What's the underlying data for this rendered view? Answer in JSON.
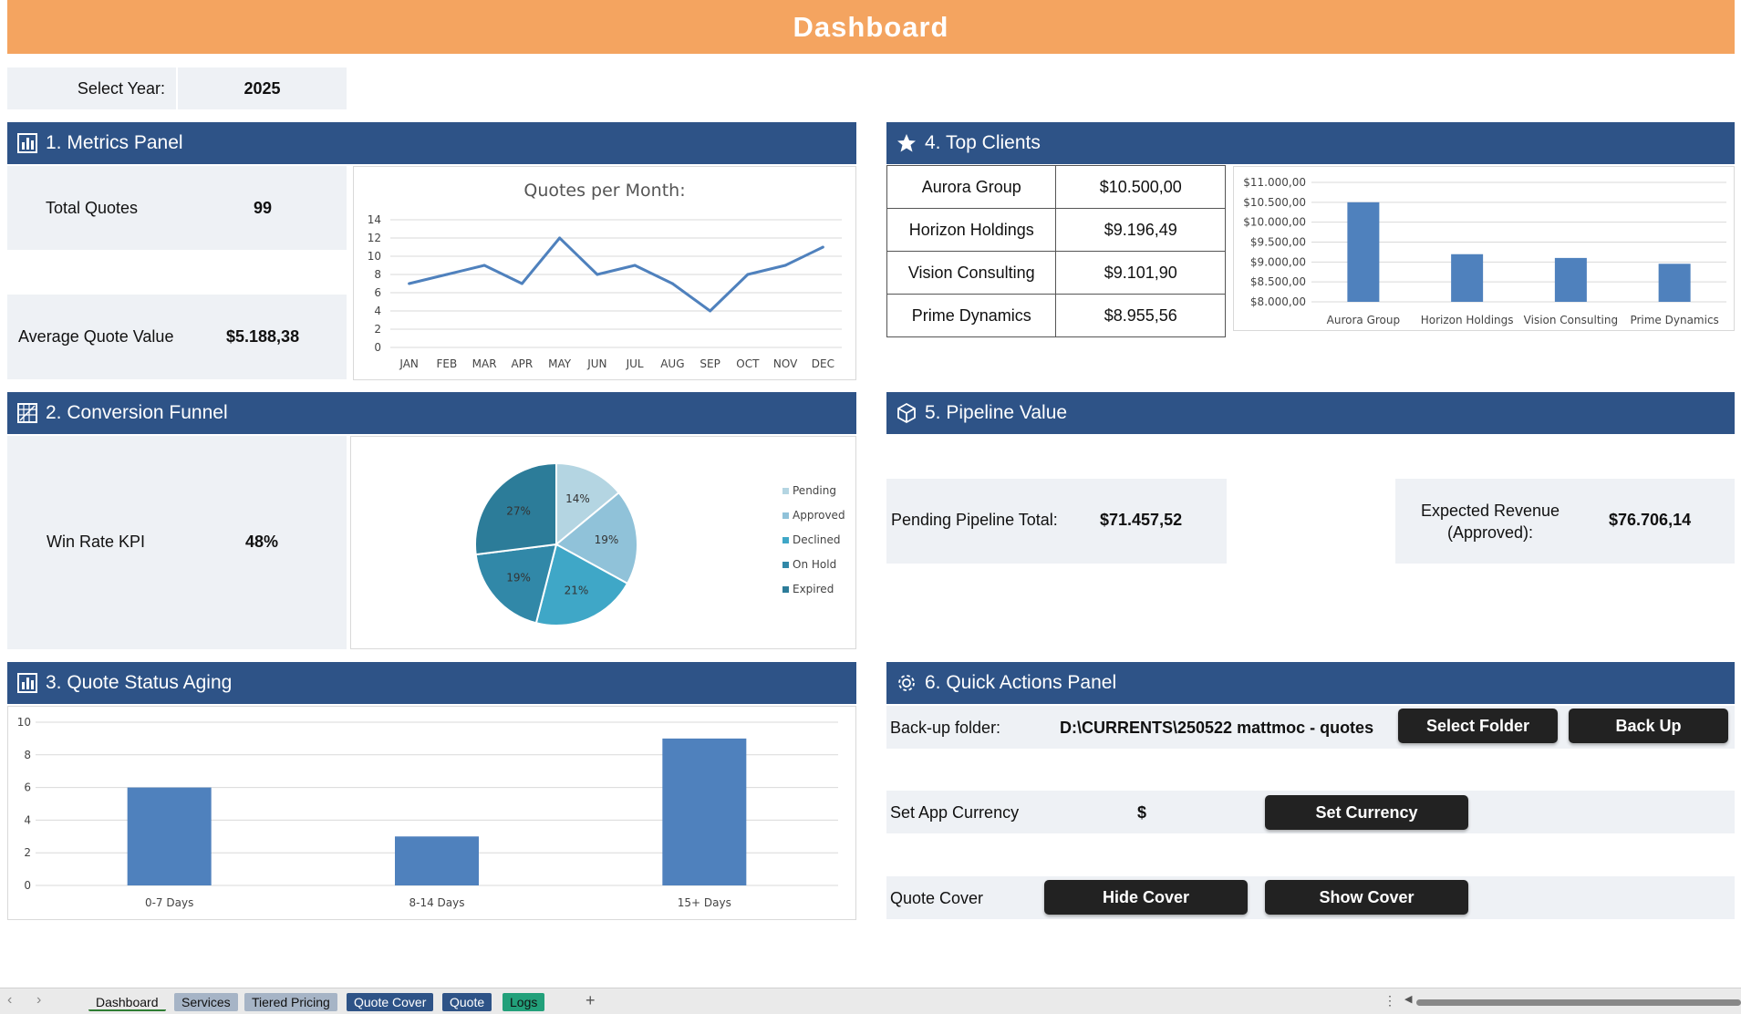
{
  "title": "Dashboard",
  "year_selector": {
    "label": "Select Year:",
    "value": "2025"
  },
  "metrics": {
    "header": "1. Metrics Panel",
    "total_quotes_label": "Total Quotes",
    "total_quotes_value": "99",
    "avg_label": "Average Quote Value",
    "avg_value": "$5.188,38",
    "chart_title": "Quotes per Month:"
  },
  "funnel": {
    "header": "2. Conversion Funnel",
    "kpi_label": "Win Rate KPI",
    "kpi_value": "48%"
  },
  "aging": {
    "header": "3. Quote Status Aging"
  },
  "clients": {
    "header": "4. Top Clients",
    "rows": [
      {
        "name": "Aurora Group",
        "value": "$10.500,00"
      },
      {
        "name": "Horizon Holdings",
        "value": "$9.196,49"
      },
      {
        "name": "Vision Consulting",
        "value": "$9.101,90"
      },
      {
        "name": "Prime Dynamics",
        "value": "$8.955,56"
      }
    ]
  },
  "pipeline": {
    "header": "5. Pipeline Value",
    "pending_label": "Pending Pipeline Total:",
    "pending_value": "$71.457,52",
    "expected_label_1": "Expected Revenue",
    "expected_label_2": "(Approved):",
    "expected_value": "$76.706,14"
  },
  "actions": {
    "header": "6. Quick Actions Panel",
    "backup_label": "Back-up folder:",
    "backup_path": "D:\\CURRENTS\\250522 mattmoc - quotes",
    "select_folder": "Select Folder",
    "back_up": "Back Up",
    "currency_label": "Set App Currency",
    "currency_value": "$",
    "set_currency": "Set Currency",
    "cover_label": "Quote Cover",
    "hide_cover": "Hide Cover",
    "show_cover": "Show Cover"
  },
  "sheet_tabs": [
    {
      "label": "Dashboard",
      "color": "#EAEAEA",
      "text": "#111",
      "active": true
    },
    {
      "label": "Services",
      "color": "#A6B4C6",
      "text": "#111"
    },
    {
      "label": "Tiered Pricing",
      "color": "#A6B4C6",
      "text": "#111"
    },
    {
      "label": "Quote Cover",
      "color": "#2E5387",
      "text": "#fff"
    },
    {
      "label": "Quote",
      "color": "#2E5387",
      "text": "#fff"
    },
    {
      "label": "Logs",
      "color": "#22A07A",
      "text": "#111"
    }
  ],
  "add_sheet_glyph": "+",
  "colors": {
    "accent": "#F4A460",
    "header": "#2E5387",
    "bar": "#4F81BD",
    "line": "#4F81BD"
  },
  "chart_data": [
    {
      "type": "line",
      "title": "Quotes per Month:",
      "categories": [
        "JAN",
        "FEB",
        "MAR",
        "APR",
        "MAY",
        "JUN",
        "JUL",
        "AUG",
        "SEP",
        "OCT",
        "NOV",
        "DEC"
      ],
      "values": [
        7,
        8,
        9,
        7,
        12,
        8,
        9,
        7,
        4,
        8,
        9,
        11
      ],
      "ylim": [
        0,
        14
      ],
      "yticks": [
        0,
        2,
        4,
        6,
        8,
        10,
        12,
        14
      ],
      "grid": true
    },
    {
      "type": "pie",
      "categories": [
        "Pending",
        "Approved",
        "Declined",
        "On Hold",
        "Expired"
      ],
      "values": [
        14,
        19,
        21,
        19,
        27
      ],
      "labels": [
        "14%",
        "19%",
        "21%",
        "19%",
        "27%"
      ],
      "colors": [
        "#B4D5E2",
        "#90C2D9",
        "#3FA7C7",
        "#3188A8",
        "#2C7C99"
      ],
      "legend": "right"
    },
    {
      "type": "bar",
      "categories": [
        "0-7 Days",
        "8-14 Days",
        "15+ Days"
      ],
      "values": [
        6,
        3,
        9
      ],
      "ylim": [
        0,
        10
      ],
      "yticks": [
        0,
        2,
        4,
        6,
        8,
        10
      ],
      "grid": true
    },
    {
      "type": "bar",
      "categories": [
        "Aurora Group",
        "Horizon Holdings",
        "Vision Consulting",
        "Prime Dynamics"
      ],
      "values": [
        10500.0,
        9196.49,
        9101.9,
        8955.56
      ],
      "ylim": [
        8000,
        11000
      ],
      "yticks": [
        "$8.000,00",
        "$8.500,00",
        "$9.000,00",
        "$9.500,00",
        "$10.000,00",
        "$10.500,00",
        "$11.000,00"
      ],
      "grid": true
    }
  ]
}
